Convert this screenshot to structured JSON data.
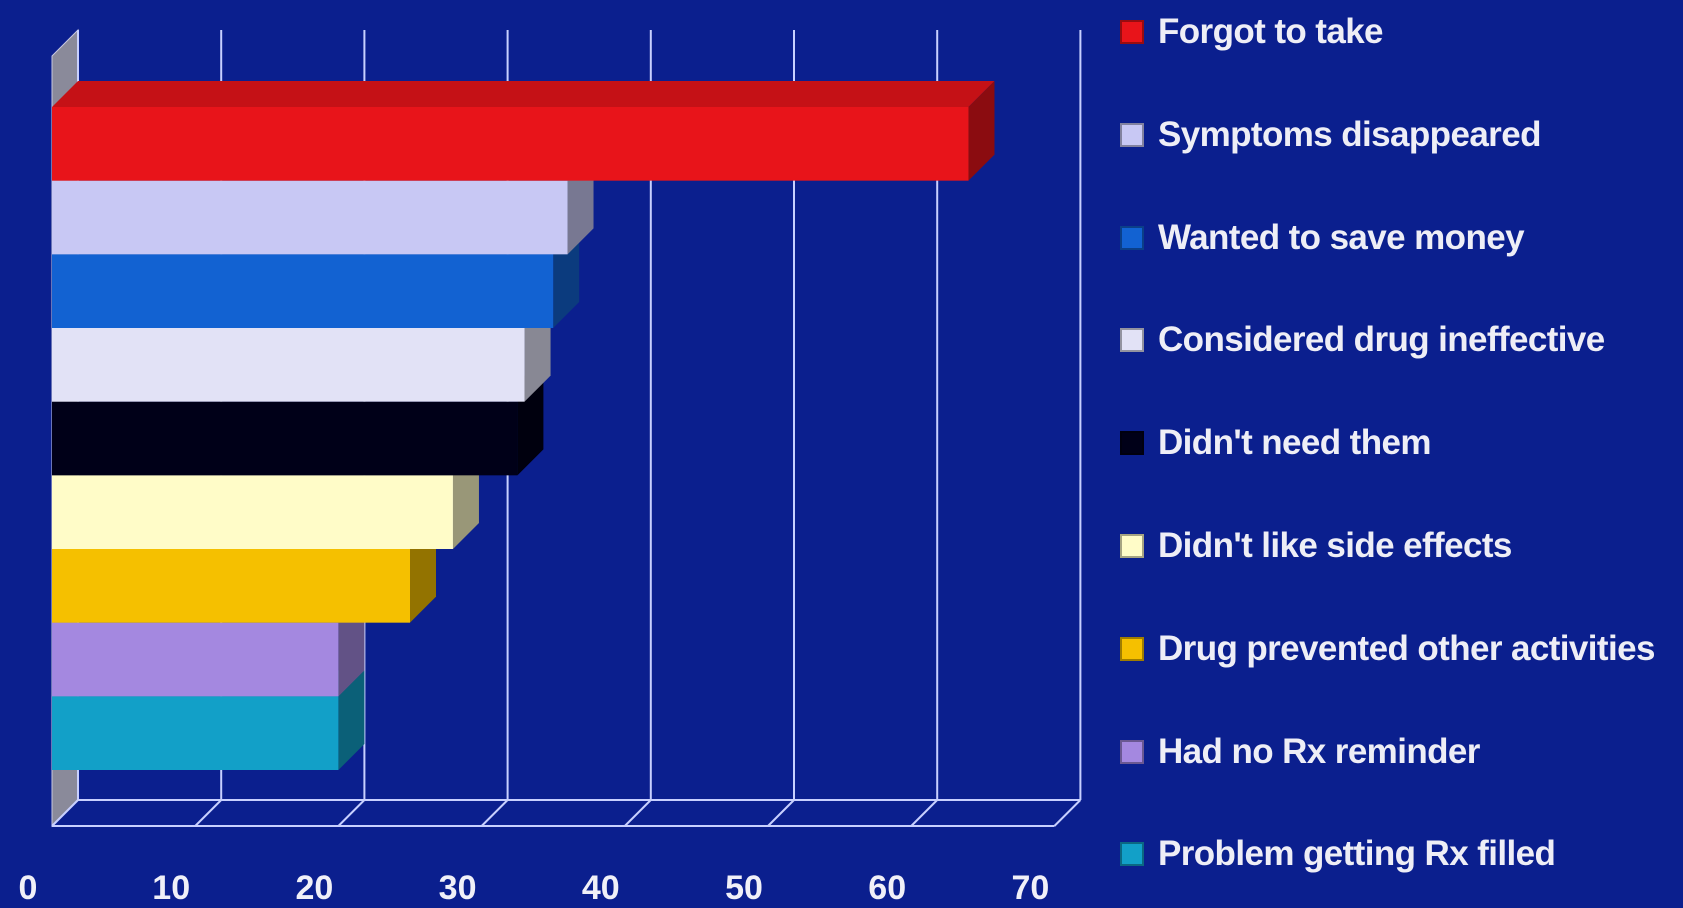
{
  "chart_data": {
    "type": "bar",
    "orientation": "horizontal",
    "categories": [
      "Forgot to take",
      "Symptoms disappeared",
      "Wanted to save money",
      "Considered drug ineffective",
      "Didn't need them",
      "Didn't like side effects",
      "Drug prevented other activities",
      "Had no Rx reminder",
      "Problem getting Rx filled"
    ],
    "values": [
      64,
      36,
      35,
      33,
      32.5,
      28,
      25,
      20,
      20
    ],
    "colors": [
      "#e8141a",
      "#c8c8f4",
      "#1262d2",
      "#e2e2f6",
      "#000018",
      "#fffcc8",
      "#f5c000",
      "#a488e0",
      "#12a0c8"
    ],
    "xlim": [
      0,
      70
    ],
    "xticks": [
      0,
      10,
      20,
      30,
      40,
      50,
      60,
      70
    ],
    "grid": true,
    "legend": "right"
  }
}
